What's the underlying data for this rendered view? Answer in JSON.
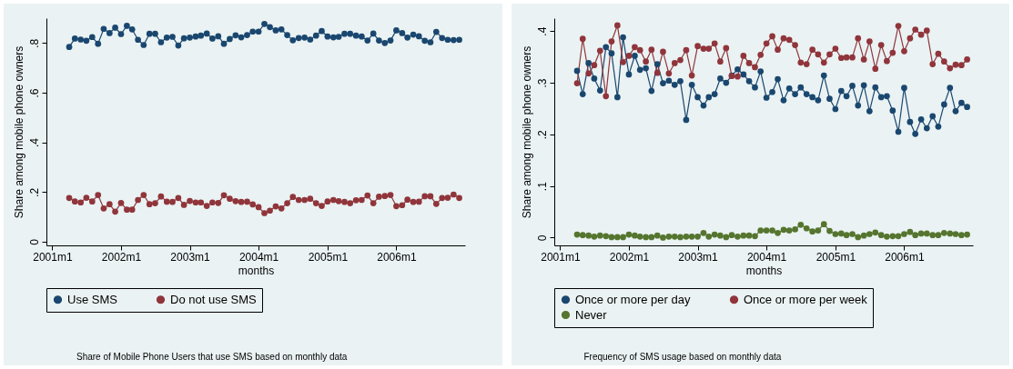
{
  "chart_data": [
    {
      "type": "line",
      "xlabel": "months",
      "ylabel": "Share among mobile phone owners",
      "annotations": [
        "Share of Mobile Phone Users that use SMS based on monthly data"
      ],
      "x": [
        "2001-04",
        "2001-05",
        "2001-06",
        "2001-07",
        "2001-08",
        "2001-09",
        "2001-10",
        "2001-11",
        "2001-12",
        "2002-01",
        "2002-02",
        "2002-03",
        "2002-04",
        "2002-05",
        "2002-06",
        "2002-07",
        "2002-08",
        "2002-09",
        "2002-10",
        "2002-11",
        "2002-12",
        "2003-01",
        "2003-02",
        "2003-03",
        "2003-04",
        "2003-05",
        "2003-06",
        "2003-07",
        "2003-08",
        "2003-09",
        "2003-10",
        "2003-11",
        "2003-12",
        "2004-01",
        "2004-02",
        "2004-03",
        "2004-04",
        "2004-05",
        "2004-06",
        "2004-07",
        "2004-08",
        "2004-09",
        "2004-10",
        "2004-11",
        "2004-12",
        "2005-01",
        "2005-02",
        "2005-03",
        "2005-04",
        "2005-05",
        "2005-06",
        "2005-07",
        "2005-08",
        "2005-09",
        "2005-10",
        "2005-11",
        "2005-12",
        "2006-01",
        "2006-02",
        "2006-03",
        "2006-04",
        "2006-05",
        "2006-06",
        "2006-07",
        "2006-08",
        "2006-09",
        "2006-10",
        "2006-11",
        "2006-12"
      ],
      "series": [
        {
          "name": "Use SMS",
          "color": "#1a476f",
          "values": [
            0.784,
            0.818,
            0.814,
            0.809,
            0.824,
            0.797,
            0.857,
            0.84,
            0.862,
            0.836,
            0.869,
            0.855,
            0.813,
            0.792,
            0.837,
            0.837,
            0.803,
            0.822,
            0.825,
            0.79,
            0.819,
            0.822,
            0.826,
            0.83,
            0.838,
            0.818,
            0.827,
            0.797,
            0.816,
            0.831,
            0.823,
            0.832,
            0.846,
            0.846,
            0.877,
            0.864,
            0.851,
            0.855,
            0.832,
            0.811,
            0.82,
            0.822,
            0.814,
            0.83,
            0.848,
            0.826,
            0.823,
            0.825,
            0.837,
            0.837,
            0.83,
            0.826,
            0.81,
            0.838,
            0.81,
            0.8,
            0.81,
            0.851,
            0.84,
            0.822,
            0.834,
            0.827,
            0.809,
            0.803,
            0.845,
            0.82,
            0.813,
            0.812,
            0.813
          ]
        },
        {
          "name": "Do not use SMS",
          "color": "#90353b",
          "values": [
            0.176,
            0.162,
            0.158,
            0.177,
            0.162,
            0.188,
            0.134,
            0.151,
            0.121,
            0.156,
            0.129,
            0.129,
            0.168,
            0.188,
            0.151,
            0.155,
            0.182,
            0.161,
            0.16,
            0.176,
            0.148,
            0.164,
            0.158,
            0.158,
            0.144,
            0.158,
            0.156,
            0.187,
            0.173,
            0.163,
            0.16,
            0.161,
            0.15,
            0.139,
            0.115,
            0.125,
            0.142,
            0.134,
            0.155,
            0.18,
            0.168,
            0.168,
            0.173,
            0.155,
            0.144,
            0.162,
            0.168,
            0.163,
            0.16,
            0.155,
            0.167,
            0.168,
            0.186,
            0.155,
            0.181,
            0.184,
            0.188,
            0.143,
            0.147,
            0.169,
            0.16,
            0.161,
            0.183,
            0.183,
            0.152,
            0.176,
            0.177,
            0.19,
            0.176
          ]
        }
      ],
      "xlim": [
        "2000-12",
        "2007-01"
      ],
      "xticks": [
        {
          "value": "2001-01",
          "label": "2001m1"
        },
        {
          "value": "2002-01",
          "label": "2002m1"
        },
        {
          "value": "2003-01",
          "label": "2003m1"
        },
        {
          "value": "2004-01",
          "label": "2004m1"
        },
        {
          "value": "2005-01",
          "label": "2005m1"
        },
        {
          "value": "2006-01",
          "label": "2006m1"
        }
      ],
      "ylim": [
        -0.015,
        0.9
      ],
      "yticks": [
        0,
        {
          "value": 0.2,
          "label": ".2"
        },
        {
          "value": 0.4,
          "label": ".4"
        },
        {
          "value": 0.6,
          "label": ".6"
        },
        {
          "value": 0.8,
          "label": ".8"
        }
      ],
      "marker": "circle",
      "legend": "bottom"
    },
    {
      "type": "line",
      "xlabel": "months",
      "ylabel": "Share among mobile phone owners",
      "annotations": [
        "Frequency of SMS usage based on monthly data"
      ],
      "x": [
        "2001-04",
        "2001-05",
        "2001-06",
        "2001-07",
        "2001-08",
        "2001-09",
        "2001-10",
        "2001-11",
        "2001-12",
        "2002-01",
        "2002-02",
        "2002-03",
        "2002-04",
        "2002-05",
        "2002-06",
        "2002-07",
        "2002-08",
        "2002-09",
        "2002-10",
        "2002-11",
        "2002-12",
        "2003-01",
        "2003-02",
        "2003-03",
        "2003-04",
        "2003-05",
        "2003-06",
        "2003-07",
        "2003-08",
        "2003-09",
        "2003-10",
        "2003-11",
        "2003-12",
        "2004-01",
        "2004-02",
        "2004-03",
        "2004-04",
        "2004-05",
        "2004-06",
        "2004-07",
        "2004-08",
        "2004-09",
        "2004-10",
        "2004-11",
        "2004-12",
        "2005-01",
        "2005-02",
        "2005-03",
        "2005-04",
        "2005-05",
        "2005-06",
        "2005-07",
        "2005-08",
        "2005-09",
        "2005-10",
        "2005-11",
        "2005-12",
        "2006-01",
        "2006-02",
        "2006-03",
        "2006-04",
        "2006-05",
        "2006-06",
        "2006-07",
        "2006-08",
        "2006-09",
        "2006-10",
        "2006-11",
        "2006-12"
      ],
      "series": [
        {
          "name": "Once or more per day",
          "color": "#1a476f",
          "values": [
            0.323,
            0.278,
            0.338,
            0.308,
            0.285,
            0.369,
            0.357,
            0.272,
            0.388,
            0.316,
            0.352,
            0.325,
            0.328,
            0.284,
            0.336,
            0.299,
            0.304,
            0.296,
            0.303,
            0.228,
            0.296,
            0.272,
            0.256,
            0.272,
            0.278,
            0.308,
            0.3,
            0.314,
            0.326,
            0.316,
            0.303,
            0.291,
            0.322,
            0.271,
            0.282,
            0.307,
            0.266,
            0.289,
            0.278,
            0.291,
            0.278,
            0.272,
            0.266,
            0.314,
            0.269,
            0.249,
            0.284,
            0.274,
            0.294,
            0.256,
            0.295,
            0.245,
            0.291,
            0.272,
            0.274,
            0.246,
            0.205,
            0.29,
            0.224,
            0.201,
            0.229,
            0.212,
            0.235,
            0.215,
            0.258,
            0.29,
            0.245,
            0.261,
            0.253
          ]
        },
        {
          "name": "Once or more per week",
          "color": "#90353b",
          "values": [
            0.299,
            0.385,
            0.318,
            0.334,
            0.362,
            0.274,
            0.38,
            0.411,
            0.34,
            0.352,
            0.369,
            0.363,
            0.341,
            0.364,
            0.319,
            0.36,
            0.318,
            0.338,
            0.344,
            0.363,
            0.314,
            0.371,
            0.366,
            0.366,
            0.376,
            0.341,
            0.367,
            0.313,
            0.312,
            0.352,
            0.338,
            0.33,
            0.354,
            0.376,
            0.39,
            0.364,
            0.386,
            0.383,
            0.373,
            0.339,
            0.336,
            0.364,
            0.355,
            0.339,
            0.355,
            0.366,
            0.348,
            0.349,
            0.349,
            0.386,
            0.345,
            0.38,
            0.327,
            0.373,
            0.342,
            0.358,
            0.41,
            0.361,
            0.386,
            0.403,
            0.393,
            0.401,
            0.336,
            0.356,
            0.341,
            0.328,
            0.335,
            0.334,
            0.345
          ]
        },
        {
          "name": "Never",
          "color": "#55752f",
          "values": [
            0.006,
            0.005,
            0.004,
            0.002,
            0.004,
            0.003,
            0.001,
            0.001,
            0.001,
            0.006,
            0.004,
            0.002,
            0.001,
            0.001,
            0.004,
            0,
            0.002,
            0.002,
            0.001,
            0.002,
            0.002,
            0.002,
            0.009,
            0.002,
            0.006,
            0.004,
            0.001,
            0.005,
            0.002,
            0.004,
            0.004,
            0.003,
            0.014,
            0.014,
            0.014,
            0.009,
            0.015,
            0.014,
            0.016,
            0.025,
            0.018,
            0.012,
            0.014,
            0.026,
            0.013,
            0.007,
            0.008,
            0.005,
            0.007,
            0.001,
            0.004,
            0.007,
            0.01,
            0.005,
            0.002,
            0.003,
            0.003,
            0.007,
            0.011,
            0.005,
            0.008,
            0.008,
            0.005,
            0.005,
            0.009,
            0.008,
            0.007,
            0.005,
            0.006
          ]
        }
      ],
      "xlim": [
        "2000-12",
        "2007-01"
      ],
      "xticks": [
        {
          "value": "2001-01",
          "label": "2001m1"
        },
        {
          "value": "2002-01",
          "label": "2002m1"
        },
        {
          "value": "2003-01",
          "label": "2003m1"
        },
        {
          "value": "2004-01",
          "label": "2004m1"
        },
        {
          "value": "2005-01",
          "label": "2005m1"
        },
        {
          "value": "2006-01",
          "label": "2006m1"
        }
      ],
      "ylim": [
        -0.015,
        0.425
      ],
      "yticks": [
        0,
        {
          "value": 0.1,
          "label": ".1"
        },
        {
          "value": 0.2,
          "label": ".2"
        },
        {
          "value": 0.3,
          "label": ".3"
        },
        {
          "value": 0.4,
          "label": ".4"
        }
      ],
      "marker": "circle",
      "legend": "bottom"
    }
  ]
}
